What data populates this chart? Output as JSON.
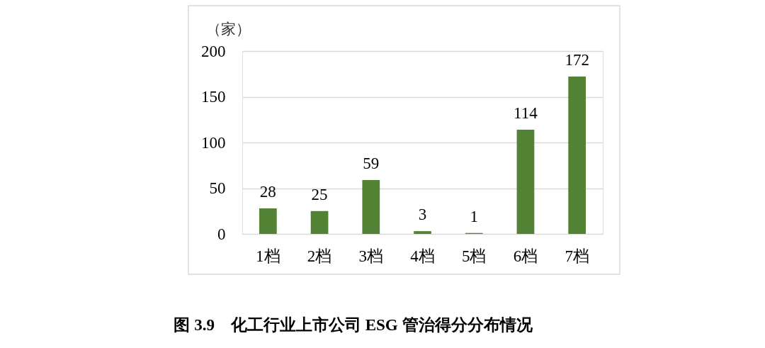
{
  "chart_data": {
    "type": "bar",
    "title": "图 3.9　化工行业上市公司 ESG 管治得分分布情况",
    "ylabel": "（家）",
    "categories": [
      "1档",
      "2档",
      "3档",
      "4档",
      "5档",
      "6档",
      "7档"
    ],
    "values": [
      28,
      25,
      59,
      3,
      1,
      114,
      172
    ],
    "color": "#548235",
    "ylim": [
      0,
      200
    ],
    "yticks": [
      0,
      50,
      100,
      150,
      200
    ],
    "grid": "y",
    "data_labels": true
  }
}
